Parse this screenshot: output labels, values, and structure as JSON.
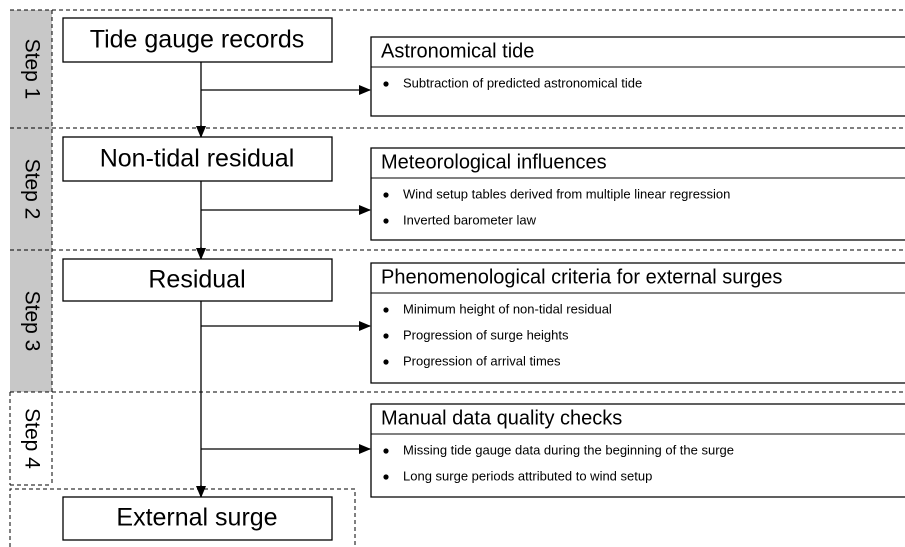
{
  "steps": [
    {
      "label": "Step 1",
      "node": "Tide gauge records",
      "detail_title": "Astronomical tide",
      "items": [
        "Subtraction of predicted astronomical tide"
      ]
    },
    {
      "label": "Step 2",
      "node": "Non-tidal residual",
      "detail_title": "Meteorological influences",
      "items": [
        "Wind setup tables derived from multiple linear regression",
        "Inverted barometer law"
      ]
    },
    {
      "label": "Step 3",
      "node": "Residual",
      "detail_title": "Phenomenological criteria for external surges",
      "items": [
        "Minimum height of non-tidal residual",
        "Progression of surge heights",
        "Progression of arrival times"
      ]
    },
    {
      "label": "Step 4",
      "detail_title": "Manual data quality checks",
      "items": [
        "Missing tide gauge data during the beginning of the surge",
        "Long surge periods attributed to wind setup"
      ]
    }
  ],
  "final_node": "External surge"
}
